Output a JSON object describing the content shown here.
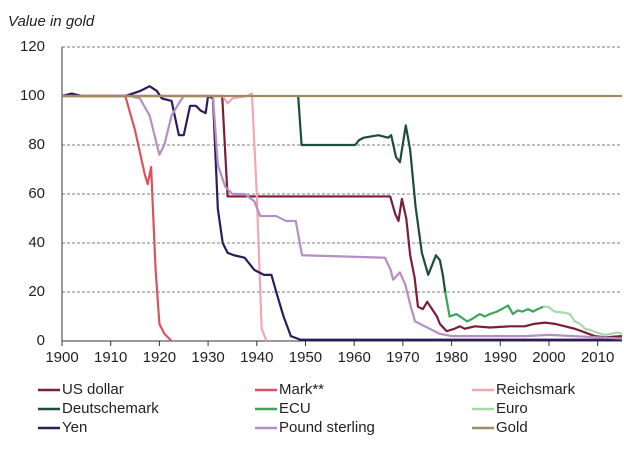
{
  "chart_data": {
    "type": "line",
    "title": "Value in gold",
    "xlim": [
      1900,
      2015
    ],
    "xticks": [
      1900,
      1910,
      1920,
      1930,
      1940,
      1950,
      1960,
      1970,
      1980,
      1990,
      2000,
      2010
    ],
    "ylim": [
      0,
      120
    ],
    "yticks": [
      0,
      20,
      40,
      60,
      80,
      100,
      120
    ],
    "grid": true,
    "series": [
      {
        "name": "US dollar",
        "color": "#7b1e3a",
        "x": [
          1900,
          1932.9,
          1934,
          1967.4,
          1968.4,
          1969.1,
          1969.8,
          1970.7,
          1971.5,
          1972.4,
          1973.1,
          1974.1,
          1975,
          1976,
          1977,
          1977.6,
          1979,
          1980.6,
          1981.7,
          1982.7,
          1984.8,
          1987.9,
          1992,
          1995,
          1997,
          1999.2,
          2001.2,
          2003.3,
          2005.3,
          2007.4,
          2009.4,
          2011.5,
          2015
        ],
        "values": [
          100,
          100,
          59,
          59,
          52,
          49,
          58,
          50,
          35,
          26,
          14,
          13,
          16,
          13,
          10,
          7,
          4,
          5,
          6,
          5,
          6,
          5.5,
          6,
          6,
          7,
          7.5,
          7,
          6,
          5,
          3.5,
          2,
          1.5,
          2
        ]
      },
      {
        "name": "Mark**",
        "color": "#d9535f",
        "x": [
          1900,
          1913,
          1915,
          1917,
          1917.6,
          1918.3,
          1919.2,
          1920,
          1921,
          1922.5
        ],
        "values": [
          100,
          100,
          86,
          68,
          64,
          71,
          30,
          7,
          3,
          0
        ]
      },
      {
        "name": "Reichsmark",
        "color": "#f2a7b0",
        "x": [
          1924,
          1933,
          1934,
          1935,
          1938,
          1939,
          1940,
          1941,
          1942
        ],
        "values": [
          100,
          100,
          97,
          99,
          100,
          101,
          60,
          5,
          0
        ]
      },
      {
        "name": "Deutschemark",
        "color": "#1e4d36",
        "x": [
          1948.5,
          1949.2,
          1960.2,
          1961,
          1962,
          1965,
          1967,
          1967.6,
          1968.6,
          1969.4,
          1970.6,
          1971.5,
          1972.6,
          1973.9,
          1975.2,
          1976,
          1976.8,
          1977.6,
          1978.2,
          1978.7
        ],
        "values": [
          100,
          80,
          80,
          82,
          83,
          84,
          83,
          84,
          75,
          73,
          88,
          78,
          55,
          36,
          27,
          31,
          35,
          33,
          27,
          20
        ]
      },
      {
        "name": "ECU",
        "color": "#3da658",
        "x": [
          1978.7,
          1979.6,
          1981,
          1983.2,
          1984.2,
          1985.8,
          1986.8,
          1987.9,
          1989.3,
          1990.3,
          1991.6,
          1992.6,
          1993.6,
          1994.5,
          1995.7,
          1996.7,
          1997.7,
          1998.8
        ],
        "values": [
          20,
          10,
          11,
          8,
          9,
          11,
          10,
          11,
          12,
          13,
          14.5,
          11,
          12.5,
          12,
          13,
          12,
          13,
          14
        ]
      },
      {
        "name": "Euro",
        "color": "#a9d8a6",
        "x": [
          1998.8,
          1999.8,
          2001.2,
          2003.3,
          2004.3,
          2005.3,
          2006.4,
          2007.4,
          2008.4,
          2010.5,
          2011.5,
          2012.9,
          2014,
          2015
        ],
        "values": [
          14,
          14,
          12,
          11.5,
          11,
          8,
          7,
          5,
          4.5,
          3,
          2.5,
          3,
          3.5,
          3
        ]
      },
      {
        "name": "Yen",
        "color": "#2e1a5e",
        "x": [
          1900,
          1902,
          1904,
          1911,
          1913,
          1916,
          1918,
          1919.5,
          1920.5,
          1922.5,
          1924,
          1925,
          1926.3,
          1927.5,
          1928.5,
          1929.5,
          1930,
          1931,
          1932,
          1933,
          1934,
          1935.3,
          1937.5,
          1939.5,
          1941.5,
          1943,
          1944,
          1945.5,
          1947,
          1949,
          2015
        ],
        "values": [
          100,
          101,
          100,
          100,
          100,
          102,
          104,
          102,
          99,
          98,
          84,
          84,
          96,
          96,
          94,
          93,
          100,
          99,
          54,
          40,
          36,
          35,
          34,
          29,
          27,
          27,
          20,
          10,
          2,
          0.5,
          0.5
        ]
      },
      {
        "name": "Pound sterling",
        "color": "#b58fc4",
        "x": [
          1900,
          1914,
          1916,
          1918,
          1920,
          1921,
          1922.5,
          1924,
          1925,
          1931,
          1932,
          1933.5,
          1935,
          1937.5,
          1939.5,
          1940.7,
          1944,
          1946,
          1948,
          1949.3,
          1966.3,
          1967.5,
          1968,
          1969.4,
          1970.5,
          1971.5,
          1972.5,
          1974.5,
          1977.5,
          1980,
          1995,
          2000,
          2005,
          2010,
          2015
        ],
        "values": [
          100,
          100,
          99,
          92,
          76,
          80,
          92,
          97,
          100,
          100,
          72,
          63,
          60,
          60,
          57,
          51,
          51,
          49,
          49,
          35,
          34,
          29,
          25,
          28,
          23,
          15,
          8,
          6,
          3,
          2,
          2,
          2.5,
          2,
          1.5,
          1
        ]
      },
      {
        "name": "Gold",
        "color": "#a08c5f",
        "x": [
          1900,
          2015
        ],
        "values": [
          100,
          100
        ]
      }
    ]
  }
}
